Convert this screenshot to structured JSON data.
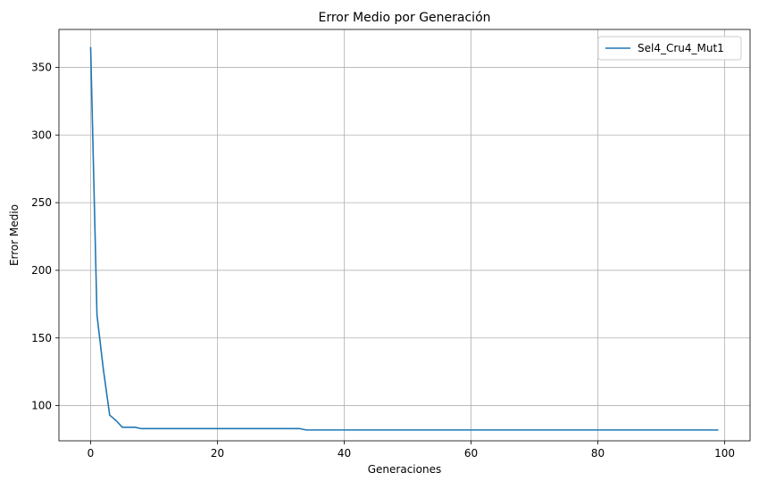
{
  "chart_data": {
    "type": "line",
    "title": "Error Medio por Generación",
    "xlabel": "Generaciones",
    "ylabel": "Error Medio",
    "xlim": [
      -5,
      104
    ],
    "ylim": [
      74,
      378
    ],
    "xticks": [
      0,
      20,
      40,
      60,
      80,
      100
    ],
    "yticks": [
      100,
      150,
      200,
      250,
      300,
      350
    ],
    "grid": true,
    "legend_position": "top-right",
    "series": [
      {
        "name": "Sel4_Cru4_Mut1",
        "color": "#1f77b4",
        "x": [
          0,
          1,
          2,
          3,
          4,
          5,
          6,
          7,
          8,
          9,
          10,
          11,
          12,
          13,
          14,
          15,
          16,
          17,
          18,
          19,
          20,
          21,
          22,
          23,
          24,
          25,
          26,
          27,
          28,
          29,
          30,
          31,
          32,
          33,
          34,
          35,
          36,
          37,
          38,
          39,
          40,
          41,
          42,
          43,
          44,
          45,
          46,
          47,
          48,
          49,
          50,
          51,
          52,
          53,
          54,
          55,
          56,
          57,
          58,
          59,
          60,
          61,
          62,
          63,
          64,
          65,
          66,
          67,
          68,
          69,
          70,
          71,
          72,
          73,
          74,
          75,
          76,
          77,
          78,
          79,
          80,
          81,
          82,
          83,
          84,
          85,
          86,
          87,
          88,
          89,
          90,
          91,
          92,
          93,
          94,
          95,
          96,
          97,
          98,
          99
        ],
        "y": [
          365,
          167,
          127,
          93,
          89,
          84,
          84,
          84,
          83,
          83,
          83,
          83,
          83,
          83,
          83,
          83,
          83,
          83,
          83,
          83,
          83,
          83,
          83,
          83,
          83,
          83,
          83,
          83,
          83,
          83,
          83,
          83,
          83,
          83,
          82,
          82,
          82,
          82,
          82,
          82,
          82,
          82,
          82,
          82,
          82,
          82,
          82,
          82,
          82,
          82,
          82,
          82,
          82,
          82,
          82,
          82,
          82,
          82,
          82,
          82,
          82,
          82,
          82,
          82,
          82,
          82,
          82,
          82,
          82,
          82,
          82,
          82,
          82,
          82,
          82,
          82,
          82,
          82,
          82,
          82,
          82,
          82,
          82,
          82,
          82,
          82,
          82,
          82,
          82,
          82,
          82,
          82,
          82,
          82,
          82,
          82,
          82,
          82,
          82,
          82
        ]
      }
    ]
  }
}
